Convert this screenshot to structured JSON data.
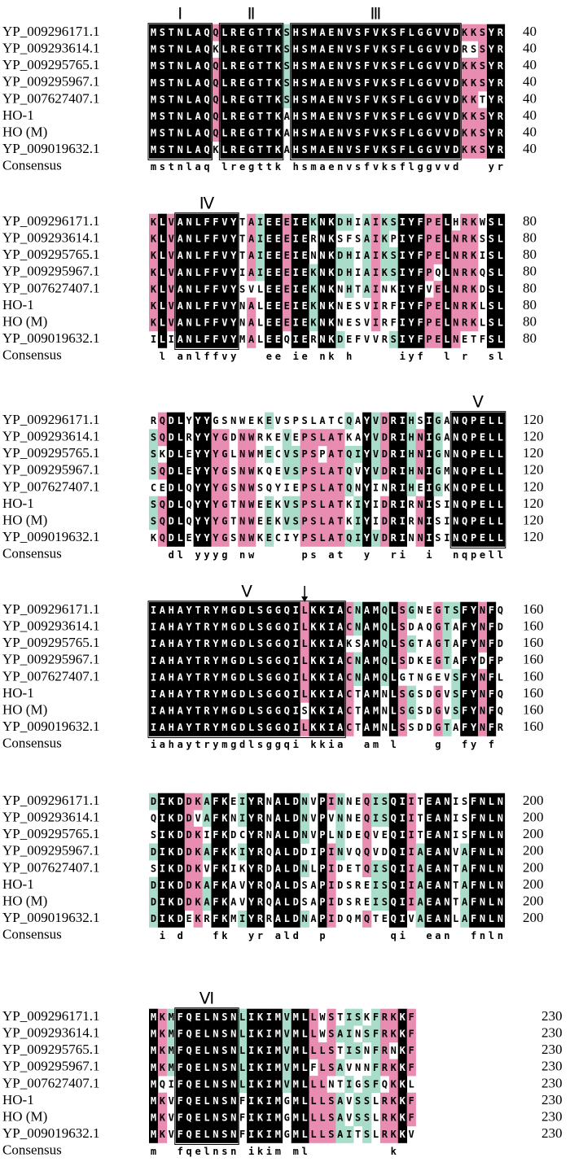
{
  "names": [
    "YP_009296171.1",
    "YP_009293614.1",
    "YP_009295765.1",
    "YP_009295967.1",
    "YP_007627407.1",
    "HO-1",
    "HO (M)",
    "YP_009019632.1"
  ],
  "consensus_label": "Consensus",
  "blocks": [
    {
      "motifs": [
        "Ⅰ",
        "Ⅱ",
        "Ⅲ"
      ],
      "end": 40,
      "sequences": [
        "MSTNLAQQLREGTTKSHSMAENVSFVKSFLGGVVDKKSYR",
        "MSTNLAQKLREGTTKSHSMAENVSFVKSFLGGVVDRSSYR",
        "MSTNLAQQLREGTTKSHSMAENVSFVKSFLGGVVDKKSYR",
        "MSTNLAQQLREGTTKSHSMAENVSFVKSFLGGVVDKKSYR",
        "MSTNLAQQLREGTTKSHSMAENVSFVKSFLGGVVDKKTYR",
        "MSTNLAQQLREGTTKAHSMAENVSFVKSFLGGVVDKKSYR",
        "MSTNLAQQLREGTTKAHSMAENVSFVKSFLGGVVDKKSYR",
        "MSTNLAQKLREGTTKAHSMAENVSFVKSFLGGVVDKKSYR"
      ],
      "consensus": "mstnlaq lregttk hsmaenvsfvksflggvvd   yr"
    },
    {
      "motifs": [
        "Ⅳ"
      ],
      "end": 80,
      "sequences": [
        "KLVANLFFVYTAIEEEIEKNKDHIAIKSIYFPELHRKWSL",
        "KLVANLFFVYTAIEEEIERNKSFSAIKPIYFPELNRKSSL",
        "KLVANLFFVYTAIEEEIENNKDHIAIKSIYFPELNRKISL",
        "KLVANLFFVYIAIEEEIEKNKDHIAIKSIYFPQLNRKQSL",
        "KLVANLFFVYSVLEEEIEKNKNHTAINKIYFVELNRKDSL",
        "KLVANLFFVYNALEEEIEKNKNESVIRFIYFPELNRKLSL",
        "KLVANLFFVYNALEEEIEKNKNESVIRFIYFPELNRKLSL",
        "ILIANLFFVYMALEEQIERNKDEFVVRSIYFPELNETFSL"
      ],
      "consensus": " l anlffvy   ee ie nk h     iyf  l r  sl"
    },
    {
      "motifs": [
        "Ⅴ"
      ],
      "end": 120,
      "sequences": [
        "RQDLYYYGSNWEKEVSPSLATCQAYVDRIHSIGANQPELL",
        "SQDLRYYYGDNWRKEVEPSLATKAYVDRIHNIGANQPELL",
        "SKDLEYYYGLNWMECVSPSPATQIYVDRIHNIGNNQPELL",
        "SQDLEYYYGSNWKQEVSPSLATQVYVDRIHNIGMNQPELL",
        "CEDLQYYYGSNWSQYIEPSLATQNYINRIHEIGKNQPELL",
        "SQDLQYYYGTNWEEKVSPSLATKIYIDRIRNISINQPELL",
        "SQDLQYYYGTNWEEKVSPSLATKIYIDRIRNISINQPELL",
        "KQDLEYYYGSNWKECIYPSLATQIYVDRINNISINQPELL"
      ],
      "consensus": "  dl yyyg nw     ps at  y  ri  i  nqpell"
    },
    {
      "motifs": [
        "Ⅴ"
      ],
      "end": 160,
      "sequences": [
        "IAHAYTRYMGDLSGGQILKKIACNAMQLSGNEGTSFYNFQ",
        "IAHAYTRYMGDLSGGQILKKIACNAMQLSDAQGTAFYNFD",
        "IAHAYTRYMGDLSGGQILKKIAKSAMQLSGTAGTAFYNFD",
        "IAHAYTRYMGDLSGGQILKKIACNAMQLSDKEGTAFYDFP",
        "IAHAYTRYMGDLSGGQILKKIACNAMQLGTNGEVSFYNFL",
        "IAHAYTRYMGDLSGGQILKKIACTAMNLSGSDGVSFYNFQ",
        "IAHAYTRYMGDLSGGQISKKIACTAMNLSGSDGVSFYNFQ",
        "IAHAYTRYMGDLSGGQILKKIACTAMNLSSDDGTAFYNFR"
      ],
      "consensus": "iahaytrymgdlsggqi kkia  am l    g  fy f"
    },
    {
      "end": 200,
      "sequences": [
        "DIKDDKAFKEIYRNALDNVPINNEQISQIITEANISFNLN",
        "QIKDDVAFKNIYRNALDNVPVNNEQISQIITEANISFNLN",
        "SIKDDKIFKDCYRNALDNVPLNDEQVEQIITEANISFNLN",
        "DIKDDKAFKKIYRQALDDIPINVQQVDQIIAEANVAFNLN",
        "SIKDDKVFKIKYRDALDNLPIDETQISQIIAEANTAFNLN",
        "DIKDDKAFKAVYRQALDSAPIDSREISQIIAEANTAFNLN",
        "DIKDDKAFKAVYRQALDSAPIDSREISQIIAEANTAFNLN",
        "DIKDEKRFKMIYRRALDNAPIDQMQTEQIVAEANLAFNLN"
      ],
      "consensus": " i d   fk  yr ald  p       qi  ean  fnln"
    },
    {
      "motifs": [
        "Ⅵ"
      ],
      "end": 230,
      "sequences": [
        "MKMFQELNSNLIKIMVMLLWSTISKFRKKF",
        "MKMFQELNSNLIKIMVMLLWSAINSFRKKF",
        "MKMFQELNSNLIKIMVMLLLSTISNFRNKF",
        "MKMFQELNSNLIKIMVMLFLSAVNNFRKKF",
        "MQIFQELNSNLIKIMVMLLLNTIGSFQKKL",
        "MKVFQELNSNFIKIMGMLLLSAVSSLRKKF",
        "MKVFQELNSNFIKIMGMLLLSAVSSLRKKF",
        "MKVFQELNSNFIKIMGMLLLSAITSLRKKV"
      ],
      "consensus": "m  fqelnsn ikim ml         k"
    }
  ]
}
